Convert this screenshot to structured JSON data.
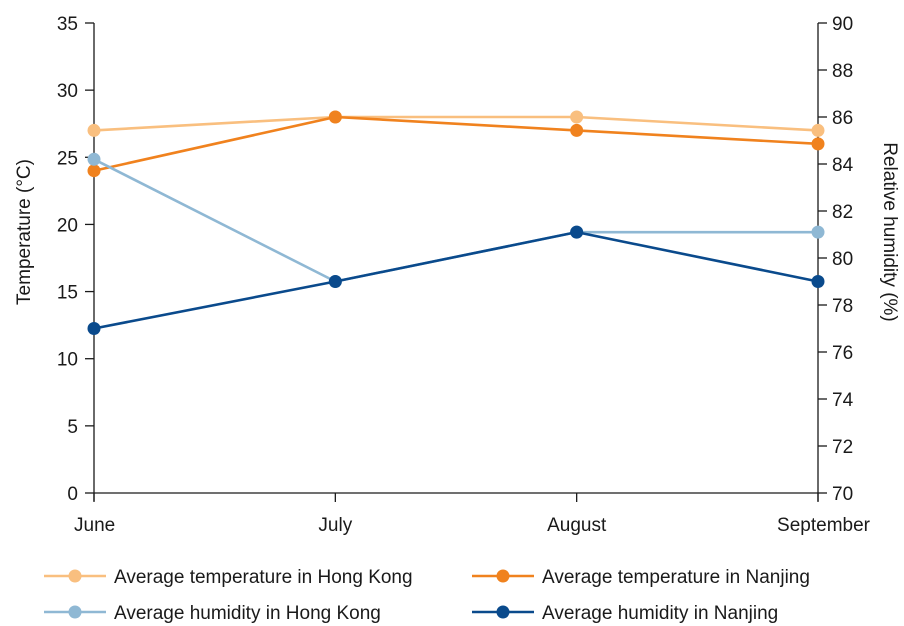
{
  "chart_data": {
    "type": "line",
    "categories": [
      "June",
      "July",
      "August",
      "September"
    ],
    "ylabel_left": "Temperature (°C)",
    "ylabel_right": "Relative humidity (%)",
    "ylim_left": [
      0,
      35
    ],
    "yticks_left": [
      0,
      5,
      10,
      15,
      20,
      25,
      30,
      35
    ],
    "ylim_right": [
      70,
      90
    ],
    "yticks_right": [
      70,
      72,
      74,
      76,
      78,
      80,
      82,
      84,
      86,
      88,
      90
    ],
    "grid": false,
    "legend_position": "bottom",
    "series": [
      {
        "name": "Average temperature in Hong Kong",
        "axis": "left",
        "color": "#f9bf7f",
        "values": [
          27,
          28,
          28,
          27
        ]
      },
      {
        "name": "Average temperature in Nanjing",
        "axis": "left",
        "color": "#f0821e",
        "values": [
          24,
          28,
          27,
          26
        ]
      },
      {
        "name": "Average humidity in Hong Kong",
        "axis": "right",
        "color": "#8fb8d4",
        "values": [
          84.2,
          79,
          81.1,
          81.1
        ]
      },
      {
        "name": "Average humidity in Nanjing",
        "axis": "right",
        "color": "#0a4a8c",
        "values": [
          77,
          79,
          81.1,
          79
        ]
      }
    ]
  }
}
